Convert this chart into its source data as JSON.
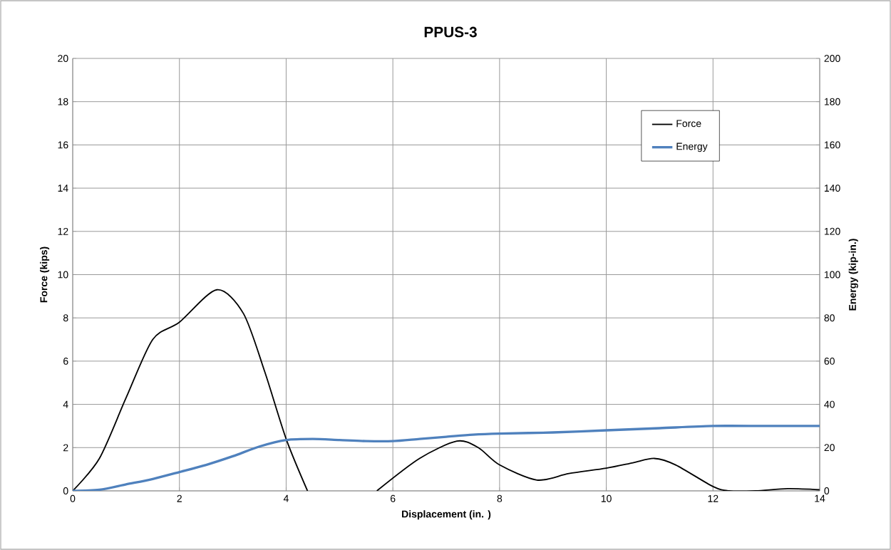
{
  "chart_data": {
    "type": "line",
    "title": "PPUS-3",
    "xlabel": "Displacement (in. )",
    "ylabel": "Force (kips)",
    "y2label": "Energy (kip-in.)",
    "xlim": [
      0,
      14
    ],
    "xticks": [
      0,
      2,
      4,
      6,
      8,
      10,
      12,
      14
    ],
    "ylim": [
      0,
      20
    ],
    "yticks": [
      0,
      2,
      4,
      6,
      8,
      10,
      12,
      14,
      16,
      18,
      20
    ],
    "y2lim": [
      0,
      200
    ],
    "y2ticks": [
      0,
      20,
      40,
      60,
      80,
      100,
      120,
      140,
      160,
      180,
      200
    ],
    "grid": true,
    "legend": "top right",
    "marker": "none",
    "line_style": "solid",
    "series": [
      {
        "name": "Force",
        "color": "#000000",
        "x": [
          0,
          0.5,
          1,
          1.5,
          2,
          2.7,
          3.2,
          3.6,
          4,
          4.4,
          5,
          5.7,
          6.5,
          7.2,
          7.6,
          8,
          8.7,
          9.3,
          10,
          10.5,
          10.9,
          11.3,
          12,
          12.3,
          12.8,
          13.4,
          14
        ],
        "values": [
          0,
          1.5,
          4.3,
          7.0,
          7.8,
          9.3,
          8.2,
          5.5,
          2.4,
          0,
          null,
          0,
          1.5,
          2.3,
          2.0,
          1.2,
          0.5,
          0.8,
          1.05,
          1.3,
          1.5,
          1.2,
          0.2,
          0,
          0,
          0.1,
          0.05
        ]
      },
      {
        "name": "Energy",
        "color": "#4f81bd",
        "axis": "y2",
        "x": [
          0,
          0.5,
          1,
          1.5,
          2,
          2.5,
          3,
          3.5,
          4,
          4.5,
          5,
          5.5,
          6,
          6.5,
          7,
          7.5,
          8,
          9,
          10,
          11,
          12,
          13,
          14
        ],
        "values": [
          0,
          0.5,
          3,
          5.5,
          8.7,
          12,
          16,
          20.5,
          23.5,
          24,
          23.5,
          23,
          23,
          24,
          25,
          26,
          26.5,
          27,
          28,
          29,
          30,
          30,
          30
        ]
      }
    ]
  }
}
